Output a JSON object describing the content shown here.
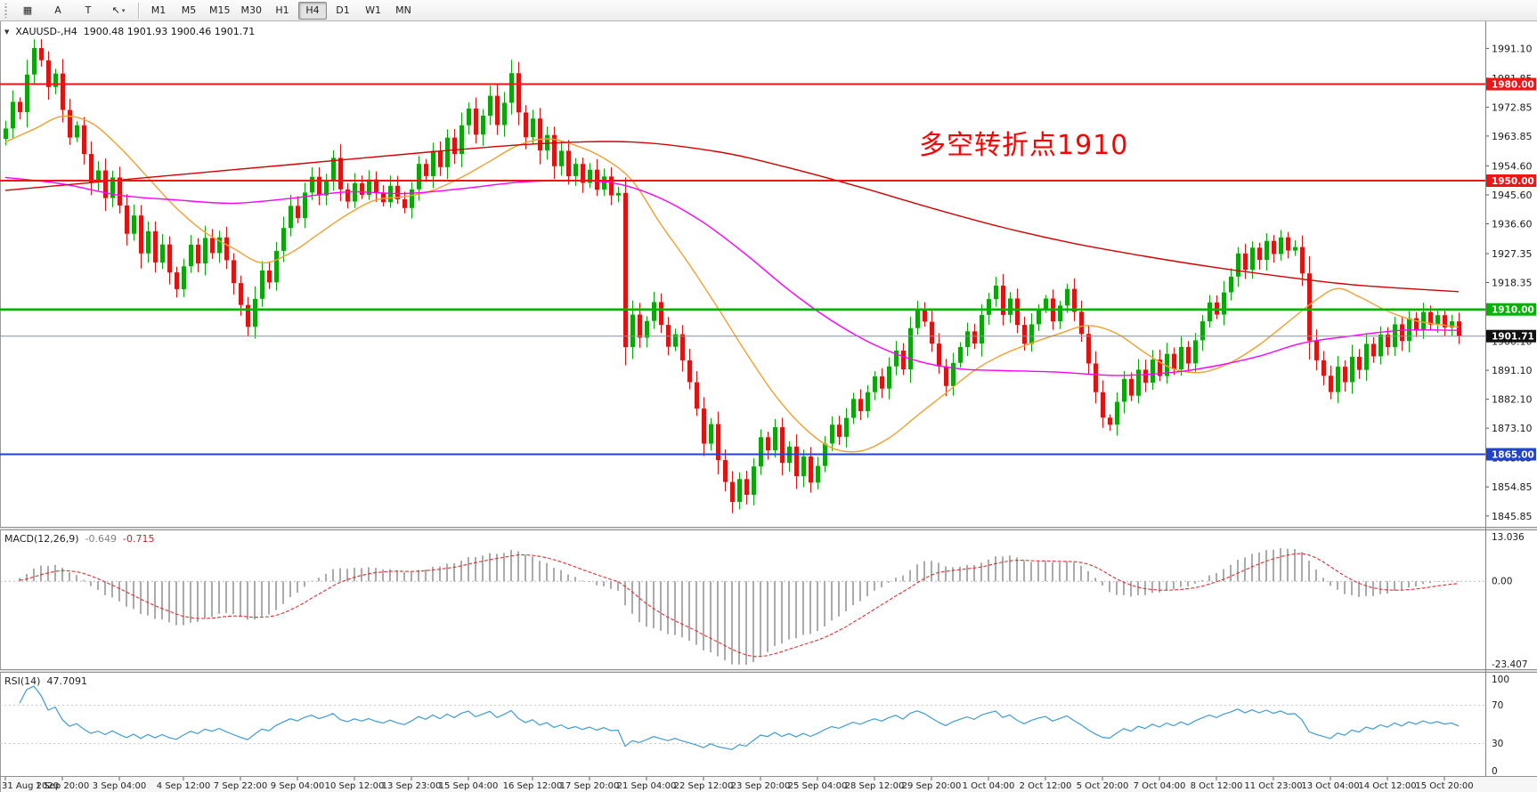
{
  "toolbar": {
    "left_buttons": [
      {
        "name": "chart-windows-icon",
        "glyph": "▦"
      },
      {
        "name": "font-tool-button",
        "glyph": "A"
      },
      {
        "name": "text-frame-button",
        "glyph": "T"
      },
      {
        "name": "cursor-tool-dropdown",
        "glyph": "↖",
        "caret": "▾"
      }
    ],
    "timeframes": [
      "M1",
      "M5",
      "M15",
      "M30",
      "H1",
      "H4",
      "D1",
      "W1",
      "MN"
    ],
    "active_timeframe": "H4"
  },
  "chart": {
    "collapse_glyph": "▼",
    "symbol_period": "XAUUSD-,H4",
    "ohlc": "1900.48 1901.93 1900.46 1901.71",
    "annotation": {
      "text": "多空转折点1910",
      "color": "#FF0000"
    }
  },
  "price_axis": {
    "ticks": [
      "1991.10",
      "1981.85",
      "1972.85",
      "1963.85",
      "1954.60",
      "1945.60",
      "1936.60",
      "1927.35",
      "1918.35",
      "1909.35",
      "1900.10",
      "1891.10",
      "1882.10",
      "1873.10",
      "1863.85",
      "1854.85",
      "1845.85"
    ]
  },
  "levels": [
    {
      "value": 1980.0,
      "label": "1980.00",
      "color": "#F01414",
      "width": 2
    },
    {
      "value": 1950.0,
      "label": "1950.00",
      "color": "#F01414",
      "width": 2
    },
    {
      "value": 1910.0,
      "label": "1910.00",
      "color": "#00B400",
      "width": 2.5
    },
    {
      "value": 1865.0,
      "label": "1865.00",
      "color": "#2244CC",
      "width": 2
    }
  ],
  "current_price": {
    "value": 1901.71,
    "label": "1901.71",
    "line_color": "#8090A8",
    "box_color": "#111111"
  },
  "macd_panel": {
    "name": "MACD(12,26,9)",
    "value1": "-0.649",
    "value2": "-0.715",
    "axis": [
      "13.036",
      "0.00",
      "-23.407"
    ],
    "fast": 12,
    "slow": 26,
    "signal": 9,
    "bar_color": "#ABABAB",
    "signal_color": "#E03030"
  },
  "rsi_panel": {
    "name": "RSI(14)",
    "value": "47.7091",
    "axis": [
      "100",
      "70",
      "30",
      "0"
    ],
    "period": 14,
    "line_color": "#3E9BD6",
    "levels": [
      70,
      30
    ]
  },
  "time_axis": {
    "labels": [
      {
        "t": "31 Aug 2020",
        "i": 0
      },
      {
        "t": "1 Sep 20:00",
        "i": 8
      },
      {
        "t": "3 Sep 04:00",
        "i": 16
      },
      {
        "t": "4 Sep 12:00",
        "i": 25
      },
      {
        "t": "7 Sep 22:00",
        "i": 33
      },
      {
        "t": "9 Sep 04:00",
        "i": 41
      },
      {
        "t": "10 Sep 12:00",
        "i": 49
      },
      {
        "t": "13 Sep 23:00",
        "i": 57
      },
      {
        "t": "15 Sep 04:00",
        "i": 65
      },
      {
        "t": "16 Sep 12:00",
        "i": 74
      },
      {
        "t": "17 Sep 20:00",
        "i": 82
      },
      {
        "t": "21 Sep 04:00",
        "i": 90
      },
      {
        "t": "22 Sep 12:00",
        "i": 98
      },
      {
        "t": "23 Sep 20:00",
        "i": 106
      },
      {
        "t": "25 Sep 04:00",
        "i": 114
      },
      {
        "t": "28 Sep 12:00",
        "i": 122
      },
      {
        "t": "29 Sep 20:00",
        "i": 130
      },
      {
        "t": "1 Oct 04:00",
        "i": 138
      },
      {
        "t": "2 Oct 12:00",
        "i": 146
      },
      {
        "t": "5 Oct 20:00",
        "i": 154
      },
      {
        "t": "7 Oct 04:00",
        "i": 162
      },
      {
        "t": "8 Oct 12:00",
        "i": 170
      },
      {
        "t": "11 Oct 23:00",
        "i": 178
      },
      {
        "t": "13 Oct 04:00",
        "i": 186
      },
      {
        "t": "14 Oct 12:00",
        "i": 194
      },
      {
        "t": "15 Oct 20:00",
        "i": 202
      }
    ]
  },
  "chart_data": {
    "type": "candlestick",
    "symbol": "XAUUSD",
    "timeframe": "H4",
    "title": "XAUUSD-,H4",
    "seed": 987654321,
    "up_color": "#0CA50C",
    "down_color": "#DC1414",
    "first_open": 1963.0,
    "ylim": [
      1842.5,
      1999.5
    ],
    "key_levels": [
      1980.0,
      1950.0,
      1910.0,
      1865.0
    ],
    "closes": [
      1966.2,
      1974.5,
      1971.3,
      1983.0,
      1991.2,
      1987.4,
      1979.1,
      1983.3,
      1972.0,
      1963.4,
      1967.2,
      1958.3,
      1949.5,
      1953.2,
      1944.6,
      1951.0,
      1942.3,
      1933.5,
      1939.2,
      1927.4,
      1934.3,
      1924.6,
      1930.2,
      1921.5,
      1916.3,
      1923.4,
      1930.1,
      1924.3,
      1932.2,
      1927.5,
      1932.4,
      1925.3,
      1918.2,
      1911.4,
      1904.6,
      1913.3,
      1922.1,
      1918.4,
      1928.2,
      1935.3,
      1942.2,
      1938.4,
      1946.3,
      1951.2,
      1945.4,
      1950.3,
      1957.1,
      1947.3,
      1943.5,
      1949.2,
      1945.6,
      1950.4,
      1946.2,
      1943.3,
      1948.4,
      1944.2,
      1941.5,
      1947.3,
      1955.2,
      1951.4,
      1959.3,
      1954.2,
      1963.4,
      1958.3,
      1967.2,
      1972.4,
      1964.3,
      1970.2,
      1976.4,
      1967.3,
      1974.2,
      1983.4,
      1971.2,
      1963.5,
      1969.3,
      1959.4,
      1964.2,
      1954.5,
      1959.3,
      1951.4,
      1955.2,
      1949.3,
      1953.4,
      1947.2,
      1951.3,
      1945.4,
      1946.2,
      1898.3,
      1908.4,
      1901.2,
      1906.4,
      1912.3,
      1905.2,
      1898.4,
      1902.3,
      1894.2,
      1887.4,
      1879.2,
      1868.3,
      1874.4,
      1863.2,
      1856.4,
      1850.2,
      1857.3,
      1852.4,
      1861.2,
      1870.3,
      1866.2,
      1873.4,
      1862.3,
      1867.4,
      1858.2,
      1864.3,
      1856.2,
      1861.4,
      1868.3,
      1874.2,
      1870.4,
      1876.3,
      1882.2,
      1878.4,
      1884.3,
      1889.2,
      1885.4,
      1892.3,
      1897.2,
      1891.4,
      1904.2,
      1910.3,
      1906.2,
      1899.4,
      1892.3,
      1886.2,
      1893.4,
      1898.3,
      1903.2,
      1899.4,
      1908.3,
      1913.2,
      1917.4,
      1908.3,
      1913.4,
      1905.2,
      1899.3,
      1905.4,
      1910.2,
      1913.4,
      1906.3,
      1911.2,
      1916.4,
      1909.3,
      1902.4,
      1893.2,
      1884.3,
      1876.4,
      1874.2,
      1881.3,
      1888.4,
      1883.2,
      1891.3,
      1887.2,
      1894.4,
      1889.3,
      1896.2,
      1891.4,
      1898.3,
      1893.2,
      1900.4,
      1906.3,
      1912.2,
      1908.4,
      1915.3,
      1920.2,
      1927.4,
      1922.3,
      1929.2,
      1925.4,
      1931.3,
      1927.2,
      1932.4,
      1928.3,
      1929.4,
      1921.2,
      1900.3,
      1894.2,
      1889.4,
      1884.3,
      1892.2,
      1887.4,
      1895.3,
      1891.2,
      1899.3,
      1895.4,
      1902.2,
      1898.3,
      1905.4,
      1900.2,
      1907.3,
      1903.4,
      1909.2,
      1905.3,
      1908.2,
      1904.4,
      1906.3,
      1901.71
    ],
    "moving_averages": [
      {
        "name": "ma-fast-orange",
        "color": "#F0A030",
        "anchors": [
          [
            0,
            1962
          ],
          [
            4,
            1966
          ],
          [
            8,
            1970
          ],
          [
            12,
            1968
          ],
          [
            16,
            1960.5
          ],
          [
            20,
            1951
          ],
          [
            24,
            1941.5
          ],
          [
            28,
            1934
          ],
          [
            32,
            1929
          ],
          [
            36,
            1924.5
          ],
          [
            40,
            1927.5
          ],
          [
            44,
            1933.5
          ],
          [
            48,
            1939.5
          ],
          [
            52,
            1944
          ],
          [
            56,
            1945
          ],
          [
            60,
            1947
          ],
          [
            64,
            1951
          ],
          [
            68,
            1956
          ],
          [
            72,
            1961
          ],
          [
            76,
            1963
          ],
          [
            80,
            1961
          ],
          [
            84,
            1957
          ],
          [
            88,
            1950
          ],
          [
            92,
            1936.5
          ],
          [
            96,
            1924
          ],
          [
            100,
            1910.5
          ],
          [
            104,
            1896.5
          ],
          [
            108,
            1883.5
          ],
          [
            112,
            1873.5
          ],
          [
            116,
            1867
          ],
          [
            120,
            1866
          ],
          [
            124,
            1870
          ],
          [
            128,
            1877
          ],
          [
            132,
            1884
          ],
          [
            136,
            1891
          ],
          [
            140,
            1896
          ],
          [
            144,
            1899.5
          ],
          [
            148,
            1902.5
          ],
          [
            152,
            1905
          ],
          [
            156,
            1902.5
          ],
          [
            160,
            1896.5
          ],
          [
            164,
            1891.5
          ],
          [
            168,
            1890.5
          ],
          [
            172,
            1893.5
          ],
          [
            176,
            1899
          ],
          [
            180,
            1906
          ],
          [
            184,
            1913
          ],
          [
            187,
            1916.5
          ],
          [
            190,
            1914
          ],
          [
            194,
            1909.5
          ],
          [
            198,
            1906.5
          ],
          [
            204,
            1904.5
          ]
        ]
      },
      {
        "name": "ma-mid-magenta",
        "color": "#FF00FF",
        "anchors": [
          [
            0,
            1951
          ],
          [
            8,
            1949
          ],
          [
            16,
            1945.5
          ],
          [
            24,
            1944
          ],
          [
            32,
            1943
          ],
          [
            40,
            1944.5
          ],
          [
            48,
            1946.5
          ],
          [
            56,
            1946
          ],
          [
            64,
            1947.5
          ],
          [
            72,
            1949.5
          ],
          [
            80,
            1950
          ],
          [
            86,
            1949
          ],
          [
            92,
            1944.5
          ],
          [
            98,
            1937
          ],
          [
            104,
            1927
          ],
          [
            110,
            1916
          ],
          [
            116,
            1906.5
          ],
          [
            122,
            1899
          ],
          [
            128,
            1894
          ],
          [
            134,
            1891.5
          ],
          [
            140,
            1891
          ],
          [
            148,
            1890.5
          ],
          [
            156,
            1889.5
          ],
          [
            164,
            1890.5
          ],
          [
            170,
            1892.5
          ],
          [
            176,
            1895.5
          ],
          [
            182,
            1899.5
          ],
          [
            188,
            1901.5
          ],
          [
            196,
            1903.5
          ],
          [
            204,
            1903.5
          ]
        ]
      },
      {
        "name": "ma-slow-red",
        "color": "#D40000",
        "anchors": [
          [
            0,
            1947
          ],
          [
            20,
            1951
          ],
          [
            40,
            1955
          ],
          [
            60,
            1959
          ],
          [
            75,
            1961.5
          ],
          [
            88,
            1962
          ],
          [
            100,
            1959
          ],
          [
            110,
            1954
          ],
          [
            120,
            1948
          ],
          [
            130,
            1941.5
          ],
          [
            140,
            1935.5
          ],
          [
            150,
            1930.5
          ],
          [
            160,
            1926.5
          ],
          [
            170,
            1923
          ],
          [
            180,
            1920
          ],
          [
            190,
            1917.5
          ],
          [
            204,
            1915.5
          ]
        ]
      }
    ]
  }
}
